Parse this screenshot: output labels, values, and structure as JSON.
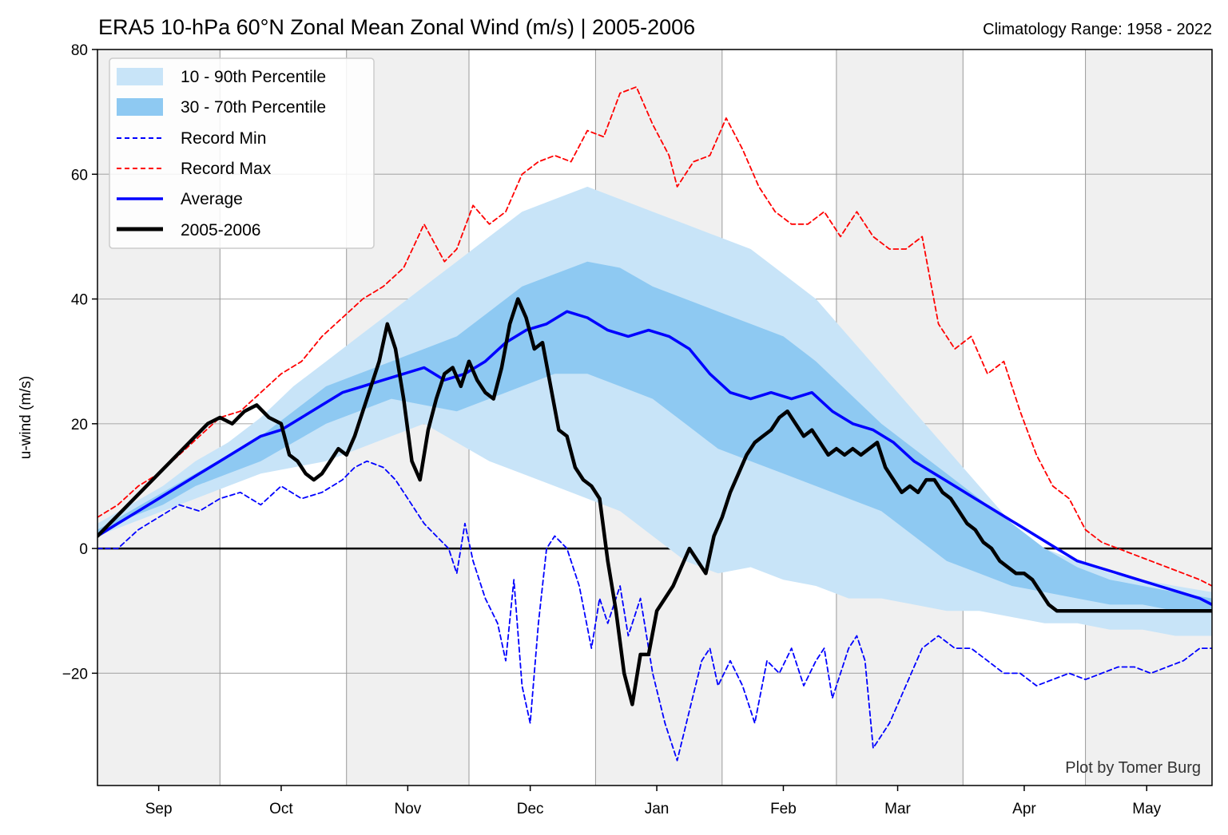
{
  "header": {
    "title": "ERA5 10-hPa 60°N Zonal Mean Zonal Wind (m/s) | 2005-2006",
    "climatology": "Climatology Range: 1958 - 2022"
  },
  "footer": {
    "credit": "Plot by Tomer Burg"
  },
  "chart_data": {
    "type": "line",
    "ylabel": "u-wind (m/s)",
    "xlabel": "",
    "ylim": [
      -38,
      80
    ],
    "yticks": [
      80,
      60,
      40,
      20,
      0,
      -20
    ],
    "ytick_labels": [
      "80",
      "60",
      "40",
      "20",
      "0",
      "−20"
    ],
    "xlim_days": [
      0,
      273
    ],
    "xtick_labels": [
      "Sep",
      "Oct",
      "Nov",
      "Dec",
      "Jan",
      "Feb",
      "Mar",
      "Apr",
      "May"
    ],
    "xtick_days": [
      15,
      45,
      76,
      106,
      137,
      168,
      196,
      227,
      257
    ],
    "shaded_month_bands_days": [
      [
        0,
        30
      ],
      [
        61,
        91
      ],
      [
        122,
        153
      ],
      [
        181,
        212
      ],
      [
        242,
        273
      ]
    ],
    "month_boundaries_days": [
      30,
      61,
      91,
      122,
      153,
      181,
      212,
      242
    ],
    "grid": true,
    "legend_position": "top-left",
    "legend": [
      "10 - 90th Percentile",
      "30 - 70th Percentile",
      "Record Min",
      "Record Max",
      "Average",
      "2005-2006"
    ],
    "colors": {
      "band_10_90": "#c8e4f8",
      "band_30_70": "#8ec9f2",
      "record_min": "#0000ff",
      "record_max": "#ff0000",
      "average": "#0000ff",
      "current": "#000000",
      "month_shade": "#f0f0f0"
    },
    "series": [
      {
        "name": "Record Min",
        "x": [
          0,
          5,
          10,
          15,
          20,
          25,
          30,
          35,
          40,
          45,
          50,
          55,
          60,
          63,
          66,
          70,
          73,
          76,
          80,
          83,
          86,
          88,
          90,
          92,
          95,
          98,
          100,
          102,
          104,
          106,
          108,
          110,
          112,
          115,
          118,
          121,
          123,
          125,
          128,
          130,
          133,
          136,
          139,
          142,
          145,
          148,
          150,
          152,
          155,
          158,
          161,
          164,
          167,
          170,
          173,
          176,
          178,
          180,
          182,
          184,
          186,
          188,
          190,
          194,
          198,
          202,
          206,
          210,
          214,
          218,
          222,
          226,
          230,
          234,
          238,
          242,
          246,
          250,
          254,
          258,
          262,
          266,
          270,
          273
        ],
        "y": [
          0,
          0,
          3,
          5,
          7,
          6,
          8,
          9,
          7,
          10,
          8,
          9,
          11,
          13,
          14,
          13,
          11,
          8,
          4,
          2,
          0,
          -4,
          4,
          -2,
          -8,
          -12,
          -18,
          -5,
          -22,
          -28,
          -12,
          0,
          2,
          0,
          -6,
          -16,
          -8,
          -12,
          -6,
          -14,
          -8,
          -20,
          -28,
          -34,
          -26,
          -18,
          -16,
          -22,
          -18,
          -22,
          -28,
          -18,
          -20,
          -16,
          -22,
          -18,
          -16,
          -24,
          -20,
          -16,
          -14,
          -18,
          -32,
          -28,
          -22,
          -16,
          -14,
          -16,
          -16,
          -18,
          -20,
          -20,
          -22,
          -21,
          -20,
          -21,
          -20,
          -19,
          -19,
          -20,
          -19,
          -18,
          -16,
          -16
        ]
      },
      {
        "name": "Record Max",
        "x": [
          0,
          5,
          10,
          15,
          20,
          25,
          30,
          35,
          40,
          45,
          50,
          55,
          60,
          65,
          70,
          75,
          80,
          85,
          88,
          92,
          96,
          100,
          104,
          108,
          112,
          116,
          120,
          124,
          128,
          132,
          136,
          140,
          142,
          146,
          150,
          154,
          158,
          162,
          166,
          170,
          174,
          178,
          182,
          186,
          190,
          194,
          198,
          202,
          206,
          210,
          214,
          218,
          222,
          226,
          230,
          234,
          238,
          242,
          246,
          250,
          254,
          258,
          262,
          266,
          270,
          273
        ],
        "y": [
          5,
          7,
          10,
          12,
          15,
          18,
          21,
          22,
          25,
          28,
          30,
          34,
          37,
          40,
          42,
          45,
          52,
          46,
          48,
          55,
          52,
          54,
          60,
          62,
          63,
          62,
          67,
          66,
          73,
          74,
          68,
          63,
          58,
          62,
          63,
          69,
          64,
          58,
          54,
          52,
          52,
          54,
          50,
          54,
          50,
          48,
          48,
          50,
          36,
          32,
          34,
          28,
          30,
          22,
          15,
          10,
          8,
          3,
          1,
          0,
          -1,
          -2,
          -3,
          -4,
          -5,
          -6
        ]
      },
      {
        "name": "Average",
        "x": [
          0,
          5,
          10,
          15,
          20,
          25,
          30,
          35,
          40,
          45,
          50,
          55,
          60,
          65,
          70,
          75,
          80,
          85,
          90,
          95,
          100,
          105,
          110,
          115,
          120,
          125,
          130,
          135,
          140,
          145,
          150,
          155,
          160,
          165,
          170,
          175,
          180,
          185,
          190,
          195,
          200,
          205,
          210,
          215,
          220,
          225,
          230,
          235,
          240,
          245,
          250,
          255,
          260,
          265,
          270,
          273
        ],
        "y": [
          2,
          4,
          6,
          8,
          10,
          12,
          14,
          16,
          18,
          19,
          21,
          23,
          25,
          26,
          27,
          28,
          29,
          27,
          28,
          30,
          33,
          35,
          36,
          38,
          37,
          35,
          34,
          35,
          34,
          32,
          28,
          25,
          24,
          25,
          24,
          25,
          22,
          20,
          19,
          17,
          14,
          12,
          10,
          8,
          6,
          4,
          2,
          0,
          -2,
          -3,
          -4,
          -5,
          -6,
          -7,
          -8,
          -9
        ]
      },
      {
        "name": "2005-2006",
        "x": [
          0,
          3,
          6,
          9,
          12,
          15,
          18,
          21,
          24,
          27,
          30,
          33,
          36,
          39,
          42,
          45,
          47,
          49,
          51,
          53,
          55,
          57,
          59,
          61,
          63,
          65,
          67,
          69,
          71,
          73,
          75,
          77,
          79,
          81,
          83,
          85,
          87,
          89,
          91,
          93,
          95,
          97,
          99,
          101,
          103,
          105,
          107,
          109,
          111,
          113,
          115,
          117,
          119,
          121,
          123,
          125,
          127,
          129,
          131,
          133,
          135,
          137,
          139,
          141,
          143,
          145,
          147,
          149,
          151,
          153,
          155,
          157,
          159,
          161,
          163,
          165,
          167,
          169,
          171,
          173,
          175,
          177,
          179,
          181,
          183,
          185,
          187,
          189,
          191,
          193,
          195,
          197,
          199,
          201,
          203,
          205,
          207,
          209,
          211,
          213,
          215,
          217,
          219,
          221,
          223,
          225,
          227,
          229,
          231,
          233,
          235,
          237,
          239,
          241,
          243,
          245,
          247,
          249,
          251,
          253,
          255,
          257,
          259,
          261,
          263,
          265,
          267,
          269,
          271,
          273
        ],
        "y": [
          2,
          4,
          6,
          8,
          10,
          12,
          14,
          16,
          18,
          20,
          21,
          20,
          22,
          23,
          21,
          20,
          15,
          14,
          12,
          11,
          12,
          14,
          16,
          15,
          18,
          22,
          26,
          30,
          36,
          32,
          24,
          14,
          11,
          19,
          24,
          28,
          29,
          26,
          30,
          27,
          25,
          24,
          29,
          36,
          40,
          37,
          32,
          33,
          26,
          19,
          18,
          13,
          11,
          10,
          8,
          -2,
          -10,
          -20,
          -25,
          -17,
          -17,
          -10,
          -8,
          -6,
          -3,
          0,
          -2,
          -4,
          2,
          5,
          9,
          12,
          15,
          17,
          18,
          19,
          21,
          22,
          20,
          18,
          19,
          17,
          15,
          16,
          15,
          16,
          15,
          16,
          17,
          13,
          11,
          9,
          10,
          9,
          11,
          11,
          9,
          8,
          6,
          4,
          3,
          1,
          0,
          -2,
          -3,
          -4,
          -4,
          -5,
          -7,
          -9,
          -10,
          -10,
          -10,
          -10,
          -10,
          -10,
          -10,
          -10,
          -10,
          -10,
          -10,
          -10,
          -10,
          -10,
          -10,
          -10,
          -10,
          -10,
          -10,
          -10
        ]
      }
    ],
    "bands": {
      "x": [
        0,
        8,
        16,
        24,
        32,
        40,
        48,
        56,
        64,
        72,
        80,
        88,
        96,
        104,
        112,
        120,
        128,
        136,
        144,
        152,
        160,
        168,
        176,
        184,
        192,
        200,
        208,
        216,
        224,
        232,
        240,
        248,
        256,
        264,
        273
      ],
      "p10": [
        2,
        4,
        6,
        8,
        10,
        12,
        13,
        14,
        16,
        18,
        20,
        17,
        14,
        12,
        10,
        8,
        6,
        2,
        -2,
        -4,
        -3,
        -5,
        -6,
        -8,
        -8,
        -9,
        -10,
        -10,
        -11,
        -12,
        -12,
        -13,
        -13,
        -14,
        -14
      ],
      "p30": [
        2,
        5,
        7,
        10,
        12,
        14,
        17,
        20,
        22,
        24,
        23,
        22,
        24,
        26,
        28,
        28,
        26,
        24,
        20,
        16,
        14,
        12,
        10,
        8,
        6,
        2,
        -2,
        -4,
        -6,
        -7,
        -8,
        -9,
        -9,
        -10,
        -10
      ],
      "p70": [
        3,
        6,
        9,
        12,
        15,
        18,
        22,
        26,
        28,
        30,
        32,
        34,
        38,
        42,
        44,
        46,
        45,
        42,
        40,
        38,
        36,
        34,
        30,
        25,
        20,
        16,
        12,
        8,
        4,
        0,
        -3,
        -5,
        -6,
        -7,
        -8
      ],
      "p90": [
        4,
        7,
        10,
        14,
        17,
        21,
        26,
        30,
        34,
        38,
        42,
        46,
        50,
        54,
        56,
        58,
        56,
        54,
        52,
        50,
        48,
        44,
        40,
        34,
        28,
        22,
        16,
        10,
        4,
        0,
        -2,
        -4,
        -5,
        -6,
        -7
      ]
    }
  }
}
